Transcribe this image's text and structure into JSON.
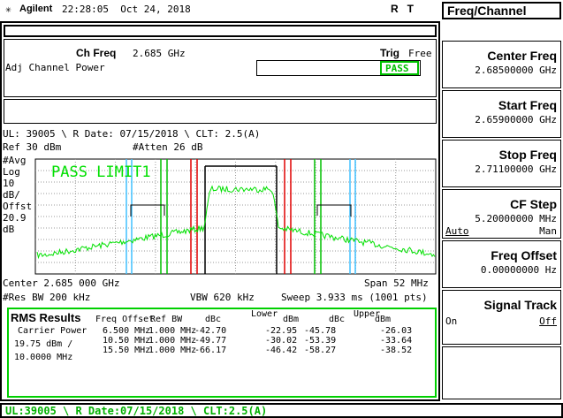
{
  "header": {
    "brand": "Agilent",
    "datetime": "22:28:05  Oct 24, 2018",
    "status": "R   T"
  },
  "menu": {
    "title": "Freq/Channel",
    "keys": [
      {
        "label": "Center Freq",
        "value": "2.68500000 GHz"
      },
      {
        "label": "Start Freq",
        "value": "2.65900000 GHz"
      },
      {
        "label": "Stop Freq",
        "value": "2.71100000 GHz"
      },
      {
        "label": "CF Step",
        "value": "5.20000000 MHz",
        "options": [
          "Auto",
          "Man"
        ]
      },
      {
        "label": "Freq Offset",
        "value": "0.00000000  Hz"
      },
      {
        "label": "Signal Track",
        "options": [
          "On",
          "Off"
        ]
      }
    ]
  },
  "measure": {
    "ch_freq_label": "Ch Freq",
    "ch_freq": "2.685 GHz",
    "trig_label": "Trig",
    "trig": "Free",
    "mode": "Adj Channel Power",
    "result": "PASS",
    "info": "UL: 39005 \\ R Date: 07/15/2018 \\ CLT: 2.5(A)",
    "ref": "Ref 30 dBm",
    "atten": "#Atten 26 dB",
    "scale": [
      "#Avg",
      "Log",
      "10",
      "dB/",
      "Offst",
      "20.9",
      "dB"
    ],
    "limit": "PASS LIMIT1",
    "center": "Center 2.685 000 GHz",
    "span": "Span 52 MHz",
    "rbw": "#Res BW 200 kHz",
    "vbw": "VBW 620 kHz",
    "sweep": "Sweep 3.933 ms (1001 pts)"
  },
  "results": {
    "title": "RMS Results",
    "headers": [
      "Freq Offset",
      "Ref BW",
      "dBc",
      "Lower",
      "dBm",
      "dBc",
      "Upper",
      "dBm"
    ],
    "carrier": [
      "Carrier Power",
      "19.75 dBm /",
      "10.0000 MHz"
    ],
    "rows": [
      [
        "6.500 MHz",
        "1.000 MHz",
        "-42.70",
        "-22.95",
        "-45.78",
        "-26.03"
      ],
      [
        "10.50 MHz",
        "1.000 MHz",
        "-49.77",
        "-30.02",
        "-53.39",
        "-33.64"
      ],
      [
        "15.50 MHz",
        "1.000 MHz",
        "-66.17",
        "-46.42",
        "-58.27",
        "-38.52"
      ]
    ]
  },
  "footer": "UL:39005 \\ R Date:07/15/2018 \\ CLT:2.5(A)"
}
